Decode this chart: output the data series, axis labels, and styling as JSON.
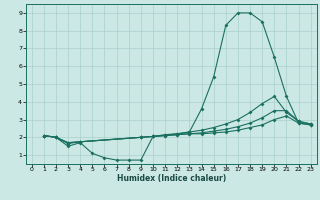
{
  "title": "",
  "xlabel": "Humidex (Indice chaleur)",
  "bg_color": "#cce8e4",
  "grid_color": "#aad0cc",
  "line_color": "#1a7060",
  "xlim": [
    -0.5,
    23.5
  ],
  "ylim": [
    0.5,
    9.5
  ],
  "xticks": [
    0,
    1,
    2,
    3,
    4,
    5,
    6,
    7,
    8,
    9,
    10,
    11,
    12,
    13,
    14,
    15,
    16,
    17,
    18,
    19,
    20,
    21,
    22,
    23
  ],
  "yticks": [
    1,
    2,
    3,
    4,
    5,
    6,
    7,
    8,
    9
  ],
  "line1_x": [
    1,
    2,
    3,
    4,
    5,
    6,
    7,
    8,
    9,
    10,
    11,
    12,
    13,
    14,
    15,
    16,
    17,
    18,
    19,
    20,
    21,
    22,
    23
  ],
  "line1_y": [
    2.1,
    2.0,
    1.5,
    1.7,
    1.1,
    0.85,
    0.72,
    0.72,
    0.72,
    2.05,
    2.15,
    2.2,
    2.3,
    3.6,
    5.4,
    8.3,
    9.0,
    9.0,
    8.5,
    6.5,
    4.3,
    2.8,
    2.7
  ],
  "line2_x": [
    1,
    2,
    3,
    4,
    9,
    10,
    11,
    12,
    13,
    14,
    15,
    16,
    17,
    18,
    19,
    20,
    21,
    22,
    23
  ],
  "line2_y": [
    2.1,
    2.0,
    1.65,
    1.75,
    2.0,
    2.05,
    2.1,
    2.15,
    2.2,
    2.2,
    2.25,
    2.3,
    2.4,
    2.55,
    2.7,
    3.0,
    3.2,
    2.8,
    2.7
  ],
  "line3_x": [
    1,
    2,
    3,
    4,
    9,
    10,
    11,
    12,
    13,
    14,
    15,
    16,
    17,
    18,
    19,
    20,
    21,
    22,
    23
  ],
  "line3_y": [
    2.1,
    2.0,
    1.7,
    1.75,
    2.0,
    2.05,
    2.1,
    2.15,
    2.2,
    2.25,
    2.35,
    2.45,
    2.6,
    2.8,
    3.1,
    3.5,
    3.5,
    2.9,
    2.75
  ],
  "line4_x": [
    1,
    2,
    3,
    4,
    9,
    10,
    11,
    12,
    13,
    14,
    15,
    16,
    17,
    18,
    19,
    20,
    21,
    22,
    23
  ],
  "line4_y": [
    2.1,
    2.0,
    1.7,
    1.75,
    2.0,
    2.05,
    2.12,
    2.2,
    2.3,
    2.4,
    2.55,
    2.75,
    3.0,
    3.4,
    3.9,
    4.3,
    3.4,
    2.9,
    2.75
  ]
}
